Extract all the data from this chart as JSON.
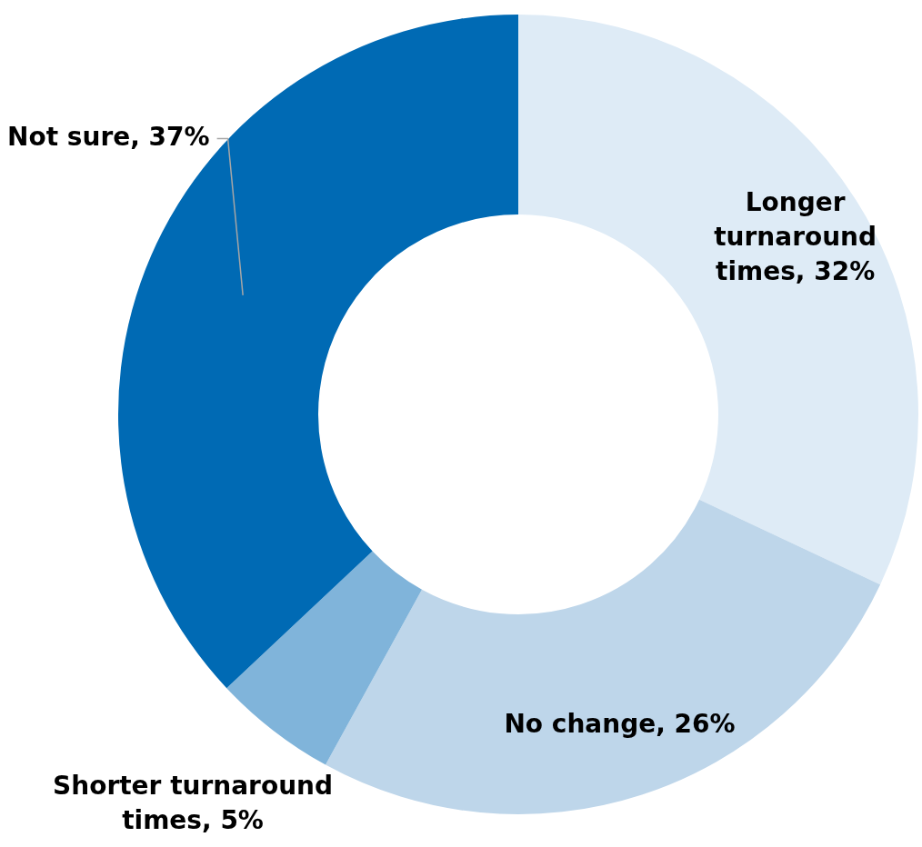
{
  "chart_data": {
    "type": "donut",
    "categories": [
      "Longer turnaround times",
      "No change",
      "Shorter turnaround times",
      "Not sure"
    ],
    "values": [
      32,
      26,
      5,
      37
    ],
    "colors": [
      "#deebf6",
      "#bed6ea",
      "#80b4da",
      "#006ab4"
    ],
    "value_labels": [
      "32%",
      "26%",
      "5%",
      "37%"
    ]
  }
}
